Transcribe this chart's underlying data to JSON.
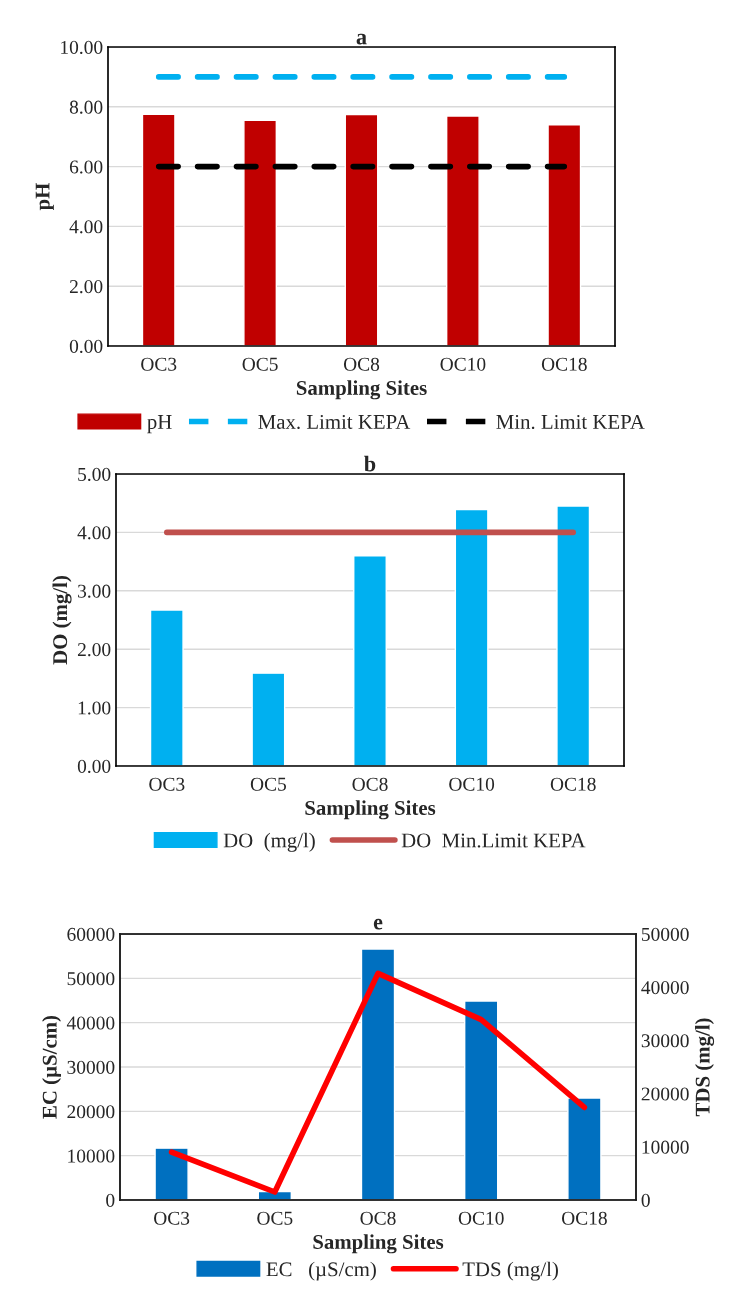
{
  "chart_data": [
    {
      "type": "bar",
      "title": "a",
      "xlabel": "Sampling Sites",
      "ylabel": "pH",
      "categories": [
        "OC3",
        "OC5",
        "OC8",
        "OC10",
        "OC18"
      ],
      "series": [
        {
          "name": "pH",
          "color": "#c00000",
          "values": [
            7.75,
            7.55,
            7.74,
            7.69,
            7.4
          ]
        },
        {
          "name": "Max. Limit KEPA",
          "type": "line",
          "line_style": "dashed",
          "color": "#00b0f0",
          "values": [
            9,
            9,
            9,
            9,
            9
          ]
        },
        {
          "name": "Min. Limit KEPA",
          "type": "line",
          "line_style": "dashed",
          "color": "#000000",
          "values": [
            6,
            6,
            6,
            6,
            6
          ]
        }
      ],
      "ylim": [
        0,
        10
      ],
      "yticks": [
        {
          "value": 0,
          "label": "0.00"
        },
        {
          "value": 2,
          "label": "2.00"
        },
        {
          "value": 4,
          "label": "4.00"
        },
        {
          "value": 6,
          "label": "6.00"
        },
        {
          "value": 8,
          "label": "8.00"
        },
        {
          "value": 10,
          "label": "10.00"
        }
      ],
      "grid": "y",
      "legend": "bottom"
    },
    {
      "type": "bar",
      "title": "b",
      "xlabel": "Sampling Sites",
      "ylabel": "DO (mg/l)",
      "categories": [
        "OC3",
        "OC5",
        "OC8",
        "OC10",
        "OC18"
      ],
      "series": [
        {
          "name": "DO  (mg/l)",
          "color": "#00b0f0",
          "values": [
            2.67,
            1.59,
            3.6,
            4.39,
            4.45
          ]
        },
        {
          "name": "DO  Min.Limit KEPA",
          "type": "line",
          "line_style": "solid",
          "color": "#c0504d",
          "values": [
            4,
            4,
            4,
            4,
            4
          ]
        }
      ],
      "ylim": [
        0,
        5
      ],
      "yticks": [
        {
          "value": 0,
          "label": "0.00"
        },
        {
          "value": 1,
          "label": "1.00"
        },
        {
          "value": 2,
          "label": "2.00"
        },
        {
          "value": 3,
          "label": "3.00"
        },
        {
          "value": 4,
          "label": "4.00"
        },
        {
          "value": 5,
          "label": "5.00"
        }
      ],
      "grid": "y",
      "legend": "bottom"
    },
    {
      "type": "bar",
      "title": "e",
      "xlabel": "Sampling Sites",
      "ylabel": "EC (µS/cm)",
      "y2label": "TDS (mg/l)",
      "categories": [
        "OC3",
        "OC5",
        "OC8",
        "OC10",
        "OC18"
      ],
      "series": [
        {
          "name": "EC   (µS/cm)",
          "color": "#0070c0",
          "values": [
            11700,
            1900,
            56600,
            44900,
            23000
          ]
        },
        {
          "name": "TDS (mg/l)",
          "type": "line",
          "line_style": "solid",
          "axis": "y2",
          "color": "#ff0000",
          "values": [
            9000,
            1500,
            42600,
            33900,
            17400
          ]
        }
      ],
      "ylim": [
        0,
        60000
      ],
      "yticks": [
        0,
        10000,
        20000,
        30000,
        40000,
        50000,
        60000
      ],
      "y2lim": [
        0,
        50000
      ],
      "y2ticks": [
        0,
        10000,
        20000,
        30000,
        40000,
        50000
      ],
      "grid": "y",
      "legend": "bottom"
    }
  ]
}
